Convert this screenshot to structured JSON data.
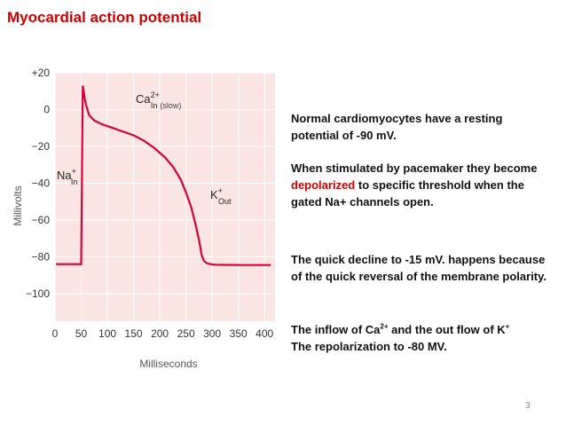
{
  "slide": {
    "title": "Myocardial action potential",
    "page_number": "3",
    "paragraphs": {
      "p1": "Normal cardiomyocytes have a resting potential of -90 mV.",
      "p2_before": "When stimulated by pacemaker they become ",
      "p2_highlight": "depolarized",
      "p2_after": " to specific threshold when the gated Na+ channels open.",
      "p3": "The quick decline to -15 mV. happens because of the quick reversal of the membrane polarity.",
      "p4_line1_a": "The inflow of Ca",
      "p4_line1_sup1": "2+",
      "p4_line1_b": " and the out flow of K",
      "p4_line1_sup2": "+",
      "p4_line2": "The repolarization to -80 MV."
    }
  },
  "colors": {
    "curve": "#d9003a",
    "plot_background": "#fbe5e3",
    "grid": "#ffffff",
    "title": "#cc0000"
  },
  "chart_data": {
    "type": "line",
    "xlabel": "Milliseconds",
    "ylabel": "Millivolts",
    "xlim": [
      0,
      420
    ],
    "ylim": [
      -115,
      20
    ],
    "x_ticks": [
      "0",
      "50",
      "100",
      "150",
      "200",
      "250",
      "300",
      "350",
      "400"
    ],
    "y_ticks": [
      "+20",
      "0",
      "−20",
      "−40",
      "−60",
      "−80",
      "−100"
    ],
    "series": [
      {
        "x": [
          2,
          50,
          50,
          53,
          58,
          65,
          75,
          90,
          110,
          130,
          150,
          170,
          190,
          210,
          225,
          240,
          250,
          260,
          268,
          275,
          280,
          284,
          288,
          292,
          297,
          305,
          320,
          350,
          380,
          412
        ],
        "y": [
          -84,
          -84,
          -84,
          13,
          4,
          -3,
          -6,
          -8,
          -10,
          -12,
          -14,
          -17,
          -21,
          -26,
          -31,
          -38,
          -45,
          -53,
          -62,
          -71,
          -79,
          -82,
          -83.2,
          -83.7,
          -84,
          -84.3,
          -84.4,
          -84.5,
          -84.5,
          -84.5
        ]
      }
    ],
    "annotations": {
      "ca": {
        "base": "Ca",
        "sup": "2+",
        "sub": "In",
        "note": "(slow)"
      },
      "na": {
        "base": "Na",
        "sup": "+",
        "sub": "In"
      },
      "k": {
        "base": "K",
        "sup": "+",
        "sub": "Out"
      }
    }
  }
}
